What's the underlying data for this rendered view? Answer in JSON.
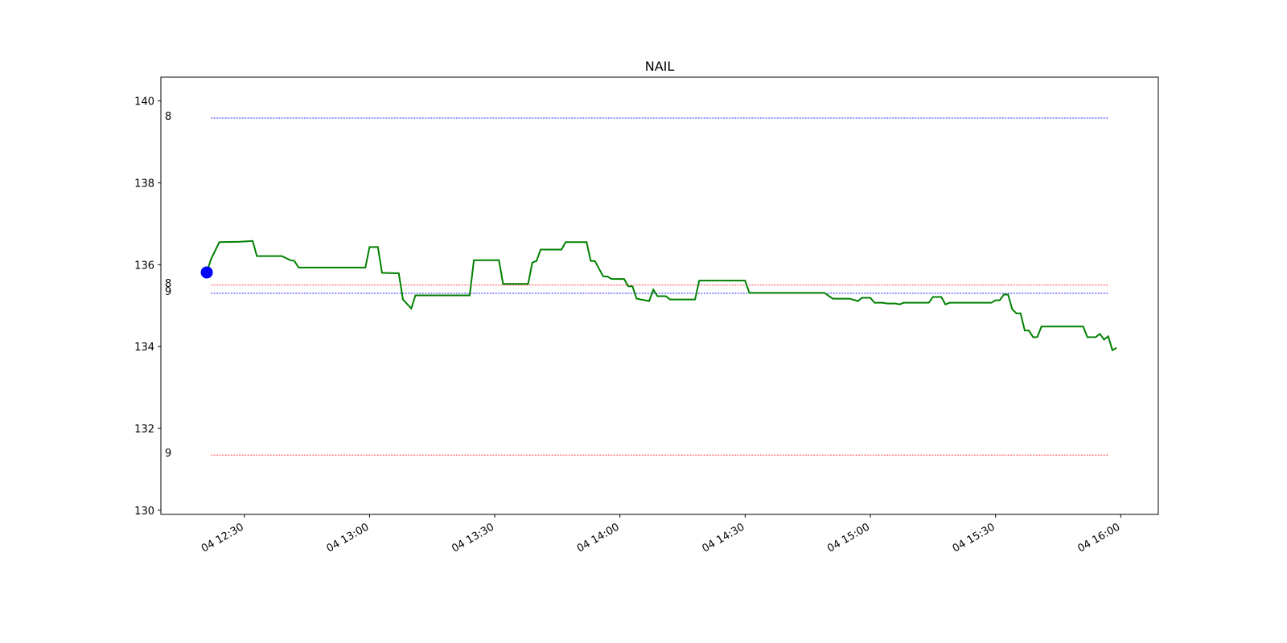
{
  "chart_data": {
    "type": "line",
    "title": "NAIL",
    "x": [
      "04 12:21",
      "04 12:22",
      "04 12:24",
      "04 12:29",
      "04 12:32",
      "04 12:33",
      "04 12:39",
      "04 12:41",
      "04 12:42",
      "04 12:43",
      "04 12:59",
      "04 13:00",
      "04 13:02",
      "04 13:03",
      "04 13:07",
      "04 13:08",
      "04 13:10",
      "04 13:11",
      "04 13:24",
      "04 13:25",
      "04 13:31",
      "04 13:32",
      "04 13:38",
      "04 13:39",
      "04 13:40",
      "04 13:41",
      "04 13:46",
      "04 13:47",
      "04 13:52",
      "04 13:53",
      "04 13:54",
      "04 13:56",
      "04 13:57",
      "04 13:58",
      "04 14:01",
      "04 14:02",
      "04 14:03",
      "04 14:04",
      "04 14:06",
      "04 14:07",
      "04 14:08",
      "04 14:09",
      "04 14:11",
      "04 14:12",
      "04 14:18",
      "04 14:19",
      "04 14:30",
      "04 14:31",
      "04 14:49",
      "04 14:51",
      "04 14:55",
      "04 14:57",
      "04 14:58",
      "04 15:00",
      "04 15:01",
      "04 15:03",
      "04 15:04",
      "04 15:06",
      "04 15:07",
      "04 15:08",
      "04 15:14",
      "04 15:15",
      "04 15:17",
      "04 15:18",
      "04 15:19",
      "04 15:29",
      "04 15:30",
      "04 15:31",
      "04 15:32",
      "04 15:33",
      "04 15:34",
      "04 15:35",
      "04 15:36",
      "04 15:37",
      "04 15:38",
      "04 15:39",
      "04 15:40",
      "04 15:41",
      "04 15:51",
      "04 15:52",
      "04 15:54",
      "04 15:55",
      "04 15:56",
      "04 15:57",
      "04 15:58",
      "04 15:59"
    ],
    "series": [
      {
        "color": "#008000",
        "values": [
          135.81,
          136.13,
          136.55,
          136.56,
          136.58,
          136.21,
          136.21,
          136.11,
          136.09,
          135.93,
          135.93,
          136.43,
          136.43,
          135.8,
          135.79,
          135.15,
          134.93,
          135.25,
          135.25,
          136.11,
          136.11,
          135.53,
          135.53,
          136.05,
          136.09,
          136.37,
          136.37,
          136.55,
          136.55,
          136.09,
          136.09,
          135.71,
          135.71,
          135.65,
          135.65,
          135.47,
          135.47,
          135.17,
          135.13,
          135.11,
          135.39,
          135.23,
          135.23,
          135.15,
          135.15,
          135.61,
          135.61,
          135.31,
          135.31,
          135.17,
          135.17,
          135.11,
          135.19,
          135.19,
          135.07,
          135.07,
          135.05,
          135.05,
          135.03,
          135.07,
          135.07,
          135.21,
          135.21,
          135.03,
          135.07,
          135.07,
          135.13,
          135.13,
          135.27,
          135.27,
          134.91,
          134.81,
          134.81,
          134.39,
          134.39,
          134.23,
          134.23,
          134.49,
          134.49,
          134.23,
          134.23,
          134.31,
          134.17,
          134.25,
          133.91,
          133.97
        ]
      }
    ],
    "hlines": [
      {
        "label": "8",
        "value": 139.58,
        "color": "blue"
      },
      {
        "label": "8",
        "value": 135.5,
        "color": "red"
      },
      {
        "label": "9",
        "value": 135.3,
        "color": "blue"
      },
      {
        "label": "9",
        "value": 131.35,
        "color": "red"
      }
    ],
    "hline_x": [
      "04 12:22",
      "04 15:57"
    ],
    "marker": {
      "x": "04 12:21",
      "value": 135.81,
      "color": "blue"
    },
    "xlim": [
      "04 12:10",
      "04 16:09"
    ],
    "xticks": [
      "04 12:30",
      "04 13:00",
      "04 13:30",
      "04 14:00",
      "04 14:30",
      "04 15:00",
      "04 15:30",
      "04 16:00"
    ],
    "ylim": [
      129.9,
      140.58
    ],
    "yticks": [
      130,
      132,
      134,
      136,
      138,
      140
    ]
  }
}
